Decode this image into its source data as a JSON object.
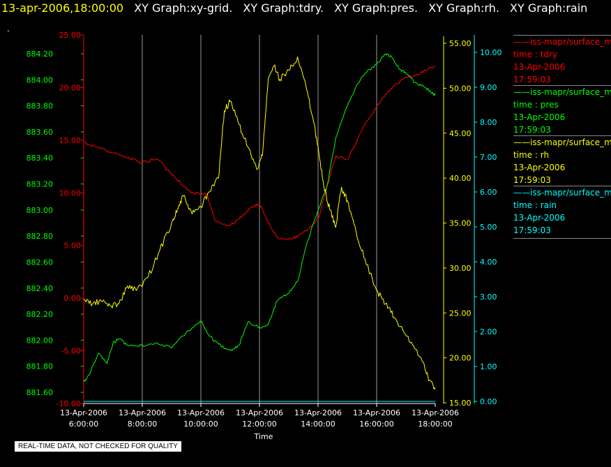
{
  "header": {
    "time_label": "13-apr-2006,18:00:00",
    "graph_labels": [
      "XY Graph:xy-grid.",
      "XY Graph:tdry.",
      "XY Graph:pres.",
      "XY Graph:rh.",
      "XY Graph:rain"
    ],
    "dot": "."
  },
  "legend": [
    {
      "series": "——iss-mapr/surface_m",
      "field": "time : tdry",
      "date": "13-Apr-2006",
      "time": "17:59:03",
      "color": "#ff0000"
    },
    {
      "series": "——iss-mapr/surface_m",
      "field": "time : pres",
      "date": "13-Apr-2006",
      "time": "17:59:03",
      "color": "#00ff00"
    },
    {
      "series": "——iss-mapr/surface_m",
      "field": "time : rh",
      "date": "13-Apr-2006",
      "time": "17:59:03",
      "color": "#ffff00"
    },
    {
      "series": "——iss-mapr/surface_m",
      "field": "time : rain",
      "date": "13-Apr-2006",
      "time": "17:59:03",
      "color": "#00ffff"
    }
  ],
  "footer_note": "REAL-TIME DATA, NOT CHECKED FOR QUALITY",
  "chart_data": {
    "type": "line",
    "xlabel": "Time",
    "x_ticks": [
      {
        "date": "13-Apr-2006",
        "time": "6:00:00",
        "hour": 6
      },
      {
        "date": "13-Apr-2006",
        "time": "8:00:00",
        "hour": 8
      },
      {
        "date": "13-Apr-2006",
        "time": "10:00:00",
        "hour": 10
      },
      {
        "date": "13-Apr-2006",
        "time": "12:00:00",
        "hour": 12
      },
      {
        "date": "13-Apr-2006",
        "time": "14:00:00",
        "hour": 14
      },
      {
        "date": "13-Apr-2006",
        "time": "16:00:00",
        "hour": 16
      },
      {
        "date": "13-Apr-2006",
        "time": "18:00:00",
        "hour": 18
      }
    ],
    "xlim": [
      6,
      18
    ],
    "grid": "vertical",
    "axes": {
      "pres": {
        "color": "#00ff00",
        "ylim": [
          881.6,
          884.3
        ],
        "ticks": [
          "881.60",
          "881.80",
          "882.00",
          "882.20",
          "882.40",
          "882.60",
          "882.80",
          "883.00",
          "883.20",
          "883.40",
          "883.60",
          "883.80",
          "884.00",
          "884.20"
        ]
      },
      "tdry": {
        "color": "#ff0000",
        "ylim": [
          -10,
          25
        ],
        "ticks": [
          "-10.00",
          "-5.00",
          "0.00",
          "5.00",
          "10.00",
          "15.00",
          "20.00",
          "25.00"
        ]
      },
      "rh": {
        "color": "#ffff00",
        "ylim": [
          15,
          55.5
        ],
        "ticks": [
          "15.00",
          "20.00",
          "25.00",
          "30.00",
          "35.00",
          "40.00",
          "45.00",
          "50.00",
          "55.00"
        ]
      },
      "rain": {
        "color": "#00ffff",
        "ylim": [
          0,
          10.2
        ],
        "ticks": [
          "0.00",
          "1.00",
          "2.00",
          "3.00",
          "4.00",
          "5.00",
          "6.00",
          "7.00",
          "8.00",
          "9.00",
          "10.00"
        ]
      }
    },
    "series": [
      {
        "name": "tdry",
        "axis": "tdry",
        "color": "#ff0000",
        "x": [
          6.0,
          6.5,
          7.0,
          7.5,
          8.0,
          8.5,
          9.0,
          9.3,
          9.6,
          10.0,
          10.2,
          10.5,
          11.0,
          11.3,
          11.7,
          12.0,
          12.3,
          12.6,
          13.0,
          13.3,
          13.7,
          14.0,
          14.3,
          14.6,
          15.0,
          15.3,
          15.6,
          16.0,
          16.3,
          16.6,
          17.0,
          17.3,
          17.6,
          18.0
        ],
        "y": [
          14.8,
          14.3,
          13.8,
          13.3,
          12.9,
          13.2,
          11.8,
          11.0,
          10.2,
          9.8,
          9.9,
          7.3,
          6.9,
          7.5,
          8.6,
          9.0,
          7.2,
          5.8,
          5.6,
          5.8,
          6.6,
          7.5,
          10.5,
          13.5,
          13.2,
          14.8,
          16.5,
          18.2,
          19.3,
          20.2,
          21.0,
          21.1,
          21.6,
          22.0
        ]
      },
      {
        "name": "pres",
        "axis": "pres",
        "color": "#00ff00",
        "x": [
          6.0,
          6.2,
          6.5,
          6.8,
          7.0,
          7.2,
          7.5,
          8.0,
          8.5,
          9.0,
          9.5,
          10.0,
          10.3,
          10.6,
          11.0,
          11.3,
          11.6,
          12.0,
          12.3,
          12.6,
          13.0,
          13.3,
          13.6,
          14.0,
          14.3,
          14.6,
          15.0,
          15.3,
          15.6,
          16.0,
          16.3,
          16.5,
          16.8,
          17.0,
          17.3,
          17.6,
          17.9,
          18.0
        ],
        "y": [
          881.68,
          881.74,
          881.9,
          881.82,
          881.98,
          882.01,
          881.96,
          881.96,
          881.98,
          881.94,
          882.06,
          882.15,
          882.03,
          881.97,
          881.92,
          881.96,
          882.14,
          882.1,
          882.12,
          882.3,
          882.36,
          882.45,
          882.73,
          883.0,
          883.18,
          883.55,
          883.8,
          883.95,
          884.05,
          884.12,
          884.2,
          884.18,
          884.08,
          884.05,
          883.98,
          883.95,
          883.9,
          883.88
        ]
      },
      {
        "name": "rh",
        "axis": "rh",
        "color": "#ffff00",
        "x": [
          6.0,
          6.3,
          6.6,
          6.9,
          7.2,
          7.5,
          7.8,
          8.2,
          8.6,
          9.0,
          9.2,
          9.4,
          9.7,
          10.0,
          10.3,
          10.6,
          10.8,
          11.0,
          11.3,
          11.6,
          11.9,
          12.1,
          12.3,
          12.5,
          12.7,
          13.0,
          13.3,
          13.6,
          13.8,
          14.0,
          14.2,
          14.4,
          14.6,
          14.8,
          15.0,
          15.3,
          15.6,
          16.0,
          16.3,
          16.6,
          17.0,
          17.3,
          17.6,
          17.8,
          18.0
        ],
        "y": [
          26.5,
          26.0,
          26.3,
          25.8,
          26.0,
          28.0,
          27.5,
          29.0,
          32.0,
          35.0,
          36.5,
          38.0,
          36.0,
          36.8,
          38.5,
          40.0,
          47.5,
          48.5,
          46.0,
          43.5,
          41.0,
          42.5,
          51.0,
          52.5,
          51.0,
          52.0,
          53.5,
          50.0,
          47.0,
          43.5,
          39.0,
          36.5,
          34.5,
          39.0,
          37.5,
          34.0,
          31.0,
          27.5,
          26.0,
          24.5,
          22.5,
          21.0,
          19.5,
          17.5,
          16.5
        ]
      },
      {
        "name": "rain",
        "axis": "rain",
        "color": "#00ffff",
        "x": [
          6,
          18
        ],
        "y": [
          0,
          0
        ]
      }
    ]
  }
}
